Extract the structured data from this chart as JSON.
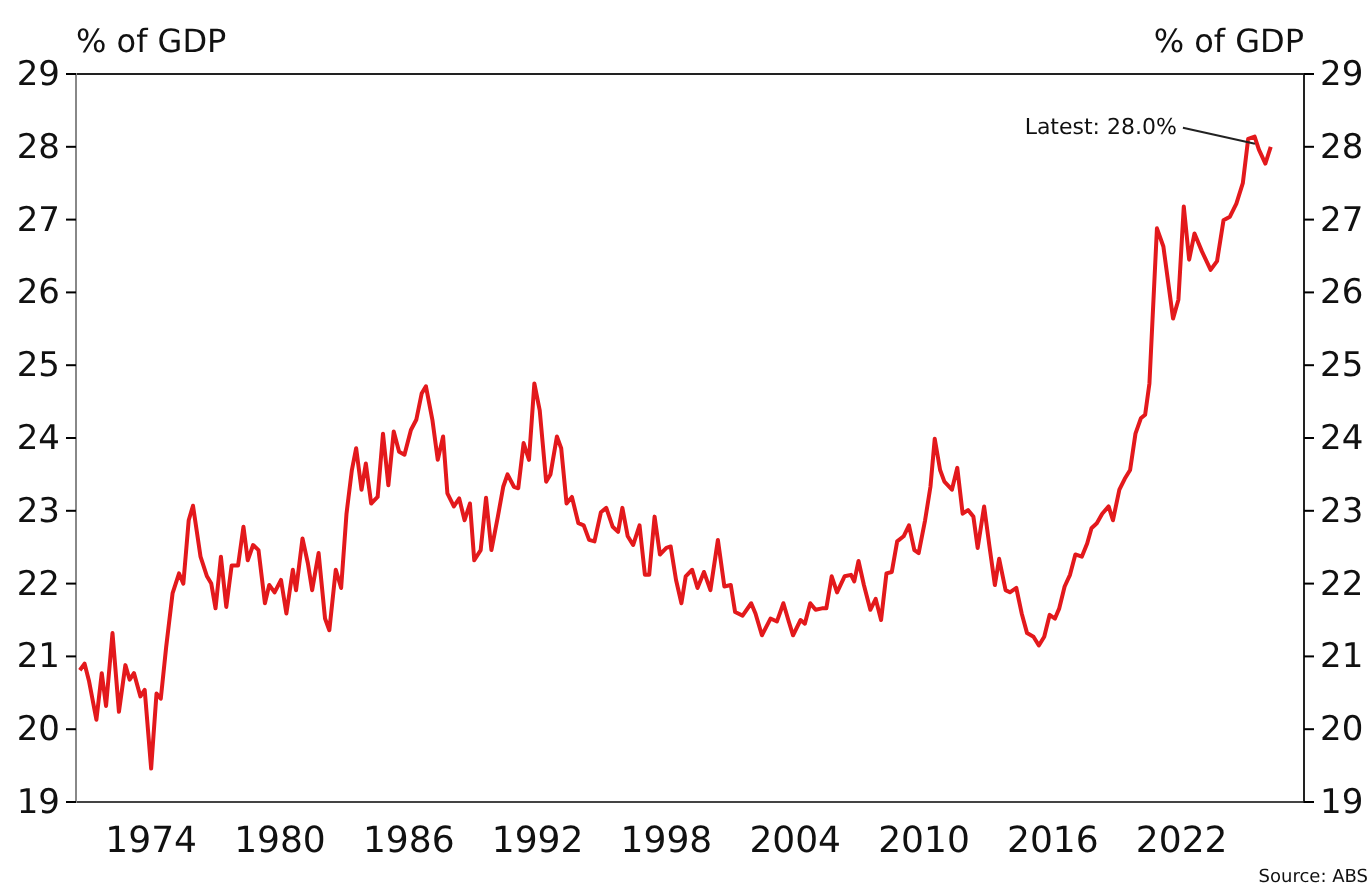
{
  "chart_data": {
    "type": "line",
    "ylabel": "% of GDP",
    "y2label": "% of GDP",
    "xlim": [
      1970.5,
      2027.7
    ],
    "xticks": [
      1974,
      1980,
      1986,
      1992,
      1998,
      2004,
      2010,
      2016,
      2022
    ],
    "ylim": [
      19,
      29
    ],
    "yticks": [
      19,
      20,
      21,
      22,
      23,
      24,
      25,
      26,
      27,
      28,
      29
    ],
    "y2lim": [
      19,
      29
    ],
    "y2ticks": [
      19,
      20,
      21,
      22,
      23,
      24,
      25,
      26,
      27,
      28,
      29
    ],
    "grid": false,
    "marker": "none",
    "line_style": "solid",
    "series": [
      {
        "color": "#e3191c",
        "x": [
          1970.68,
          1970.9,
          1971.1,
          1971.45,
          1971.7,
          1971.9,
          1972.2,
          1972.5,
          1972.8,
          1973.0,
          1973.2,
          1973.5,
          1973.7,
          1974.0,
          1974.25,
          1974.45,
          1974.7,
          1975.0,
          1975.3,
          1975.5,
          1975.75,
          1975.95,
          1976.3,
          1976.6,
          1976.8,
          1977.0,
          1977.25,
          1977.5,
          1977.75,
          1978.05,
          1978.3,
          1978.5,
          1978.75,
          1979.0,
          1979.3,
          1979.5,
          1979.75,
          1980.05,
          1980.3,
          1980.6,
          1980.75,
          1981.05,
          1981.3,
          1981.5,
          1981.8,
          1982.1,
          1982.3,
          1982.6,
          1982.85,
          1983.1,
          1983.35,
          1983.55,
          1983.8,
          1984.0,
          1984.25,
          1984.55,
          1984.8,
          1985.05,
          1985.3,
          1985.55,
          1985.8,
          1986.1,
          1986.35,
          1986.6,
          1986.8,
          1987.1,
          1987.35,
          1987.6,
          1987.8,
          1988.1,
          1988.35,
          1988.6,
          1988.85,
          1989.05,
          1989.35,
          1989.6,
          1989.85,
          1990.15,
          1990.4,
          1990.6,
          1990.9,
          1991.1,
          1991.35,
          1991.6,
          1991.85,
          1992.1,
          1992.4,
          1992.6,
          1992.9,
          1993.1,
          1993.35,
          1993.6,
          1993.9,
          1994.15,
          1994.4,
          1994.65,
          1994.95,
          1995.2,
          1995.5,
          1995.75,
          1995.95,
          1996.2,
          1996.45,
          1996.75,
          1997.0,
          1997.2,
          1997.45,
          1997.7,
          1998.0,
          1998.2,
          1998.45,
          1998.7,
          1998.9,
          1999.2,
          1999.45,
          1999.75,
          2000.05,
          2000.4,
          2000.7,
          2001.0,
          2001.2,
          2001.55,
          2001.95,
          2002.15,
          2002.45,
          2002.85,
          2003.15,
          2003.45,
          2003.7,
          2003.9,
          2004.25,
          2004.45,
          2004.7,
          2004.95,
          2005.25,
          2005.45,
          2005.7,
          2005.95,
          2006.3,
          2006.6,
          2006.75,
          2006.95,
          2007.2,
          2007.5,
          2007.75,
          2008.0,
          2008.25,
          2008.5,
          2008.75,
          2009.05,
          2009.3,
          2009.55,
          2009.75,
          2010.05,
          2010.3,
          2010.5,
          2010.75,
          2010.95,
          2011.3,
          2011.55,
          2011.8,
          2012.05,
          2012.3,
          2012.5,
          2012.8,
          2013.05,
          2013.3,
          2013.5,
          2013.8,
          2014.0,
          2014.3,
          2014.55,
          2014.8,
          2015.1,
          2015.35,
          2015.6,
          2015.85,
          2016.1,
          2016.3,
          2016.55,
          2016.8,
          2017.05,
          2017.35,
          2017.6,
          2017.8,
          2018.05,
          2018.3,
          2018.6,
          2018.8,
          2019.1,
          2019.35,
          2019.6,
          2019.85,
          2020.1,
          2020.3,
          2020.5,
          2020.85,
          2021.15,
          2021.6,
          2021.85,
          2022.1,
          2022.35,
          2022.6,
          2022.95,
          2023.35,
          2023.65,
          2023.95,
          2024.25,
          2024.55,
          2024.85,
          2025.1,
          2025.4,
          2025.6,
          2025.9,
          2026.15
        ],
        "values": [
          20.81,
          20.9,
          20.67,
          20.13,
          20.77,
          20.32,
          21.32,
          20.24,
          20.88,
          20.68,
          20.77,
          20.45,
          20.54,
          19.46,
          20.49,
          20.42,
          21.13,
          21.87,
          22.14,
          22.0,
          22.87,
          23.07,
          22.37,
          22.1,
          22.0,
          21.66,
          22.37,
          21.68,
          22.25,
          22.25,
          22.78,
          22.32,
          22.53,
          22.46,
          21.73,
          21.98,
          21.88,
          22.05,
          21.59,
          22.19,
          21.91,
          22.62,
          22.28,
          21.91,
          22.42,
          21.52,
          21.36,
          22.19,
          21.94,
          22.96,
          23.56,
          23.86,
          23.29,
          23.65,
          23.1,
          23.19,
          24.06,
          23.35,
          24.09,
          23.81,
          23.77,
          24.11,
          24.25,
          24.61,
          24.71,
          24.25,
          23.7,
          24.02,
          23.24,
          23.06,
          23.17,
          22.87,
          23.1,
          22.32,
          22.46,
          23.18,
          22.46,
          22.92,
          23.33,
          23.5,
          23.33,
          23.31,
          23.93,
          23.7,
          24.75,
          24.38,
          23.4,
          23.5,
          24.02,
          23.86,
          23.1,
          23.19,
          22.83,
          22.8,
          22.6,
          22.58,
          22.98,
          23.04,
          22.78,
          22.71,
          23.04,
          22.65,
          22.53,
          22.8,
          22.12,
          22.12,
          22.92,
          22.4,
          22.49,
          22.51,
          22.05,
          21.73,
          22.1,
          22.19,
          21.94,
          22.16,
          21.91,
          22.6,
          21.96,
          21.98,
          21.61,
          21.56,
          21.73,
          21.59,
          21.29,
          21.52,
          21.48,
          21.73,
          21.48,
          21.29,
          21.5,
          21.45,
          21.73,
          21.64,
          21.66,
          21.66,
          22.1,
          21.88,
          22.1,
          22.12,
          22.03,
          22.31,
          21.98,
          21.64,
          21.79,
          21.5,
          22.14,
          22.16,
          22.58,
          22.65,
          22.8,
          22.46,
          22.42,
          22.87,
          23.33,
          23.99,
          23.56,
          23.4,
          23.29,
          23.59,
          22.96,
          23.01,
          22.92,
          22.49,
          23.06,
          22.51,
          21.98,
          22.34,
          21.91,
          21.88,
          21.94,
          21.59,
          21.32,
          21.27,
          21.15,
          21.27,
          21.57,
          21.52,
          21.66,
          21.96,
          22.12,
          22.4,
          22.37,
          22.55,
          22.76,
          22.83,
          22.96,
          23.06,
          22.87,
          23.29,
          23.44,
          23.56,
          24.06,
          24.27,
          24.32,
          24.75,
          26.88,
          26.63,
          25.64,
          25.9,
          27.18,
          26.45,
          26.81,
          26.56,
          26.31,
          26.43,
          26.99,
          27.04,
          27.22,
          27.5,
          28.11,
          28.14,
          27.96,
          27.77,
          28.0
        ]
      }
    ],
    "annotations": [
      {
        "text": "Latest: 28.0%",
        "x": 2025.6,
        "y": 27.96
      },
      "Source: ABS"
    ]
  }
}
